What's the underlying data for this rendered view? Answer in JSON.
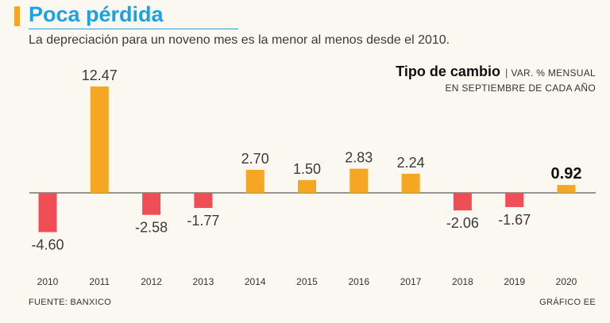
{
  "header": {
    "title": "Poca pérdida",
    "subtitle": "La depreciación para un noveno mes es la menor al menos desde el 2010."
  },
  "unit": {
    "main": "Tipo de cambio",
    "separator": "|",
    "sub": "VAR. % MENSUAL",
    "line2": "EN SEPTIEMBRE DE CADA AÑO"
  },
  "footer": {
    "source": "FUENTE: BANXICO",
    "credit": "GRÁFICO EE"
  },
  "colors": {
    "positive": "#f5a623",
    "negative": "#ef4e57",
    "title": "#1aa3e0",
    "axis": "#333333"
  },
  "chart_data": {
    "type": "bar",
    "title": "Tipo de cambio",
    "ylabel": "VAR. % MENSUAL EN SEPTIEMBRE DE CADA AÑO",
    "categories": [
      "2010",
      "2011",
      "2012",
      "2013",
      "2014",
      "2015",
      "2016",
      "2017",
      "2018",
      "2019",
      "2020"
    ],
    "values": [
      -4.6,
      12.47,
      -2.58,
      -1.77,
      2.7,
      1.5,
      2.83,
      2.24,
      -2.06,
      -1.67,
      0.92
    ],
    "labels": [
      "-4.60",
      "12.47",
      "-2.58",
      "-1.77",
      "2.70",
      "1.50",
      "2.83",
      "2.24",
      "-2.06",
      "-1.67",
      "0.92"
    ],
    "highlight": "2020",
    "ylim": [
      -4.6,
      12.47
    ],
    "grid": false
  }
}
